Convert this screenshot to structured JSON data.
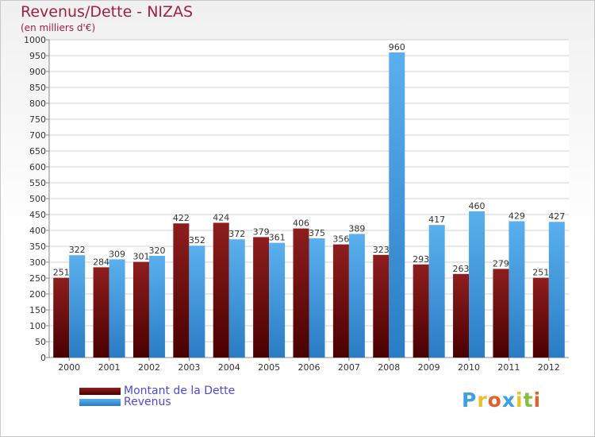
{
  "header": {
    "title": "Revenus/Dette - NIZAS",
    "subtitle": "(en milliers d'€)"
  },
  "legend": {
    "items": [
      {
        "label": "Montant de la Dette",
        "color": "#6e0a0a"
      },
      {
        "label": "Revenus",
        "color": "#3d9de0"
      }
    ]
  },
  "logo": {
    "text": "Proxiti"
  },
  "chart_data": {
    "type": "bar",
    "title": "Revenus/Dette - NIZAS",
    "subtitle": "(en milliers d'€)",
    "categories": [
      "2000",
      "2001",
      "2002",
      "2003",
      "2004",
      "2005",
      "2006",
      "2007",
      "2008",
      "2009",
      "2010",
      "2011",
      "2012"
    ],
    "series": [
      {
        "name": "Montant de la Dette",
        "color": "#6e0a0a",
        "values": [
          251,
          284,
          301,
          422,
          424,
          379,
          406,
          356,
          323,
          293,
          263,
          279,
          251
        ]
      },
      {
        "name": "Revenus",
        "color": "#3d9de0",
        "values": [
          322,
          309,
          320,
          352,
          372,
          361,
          375,
          389,
          960,
          417,
          460,
          429,
          427
        ]
      }
    ],
    "ylim": [
      0,
      1000
    ],
    "ytick_step": 50,
    "grid": true,
    "legend_position": "bottom-left",
    "data_labels": true
  }
}
